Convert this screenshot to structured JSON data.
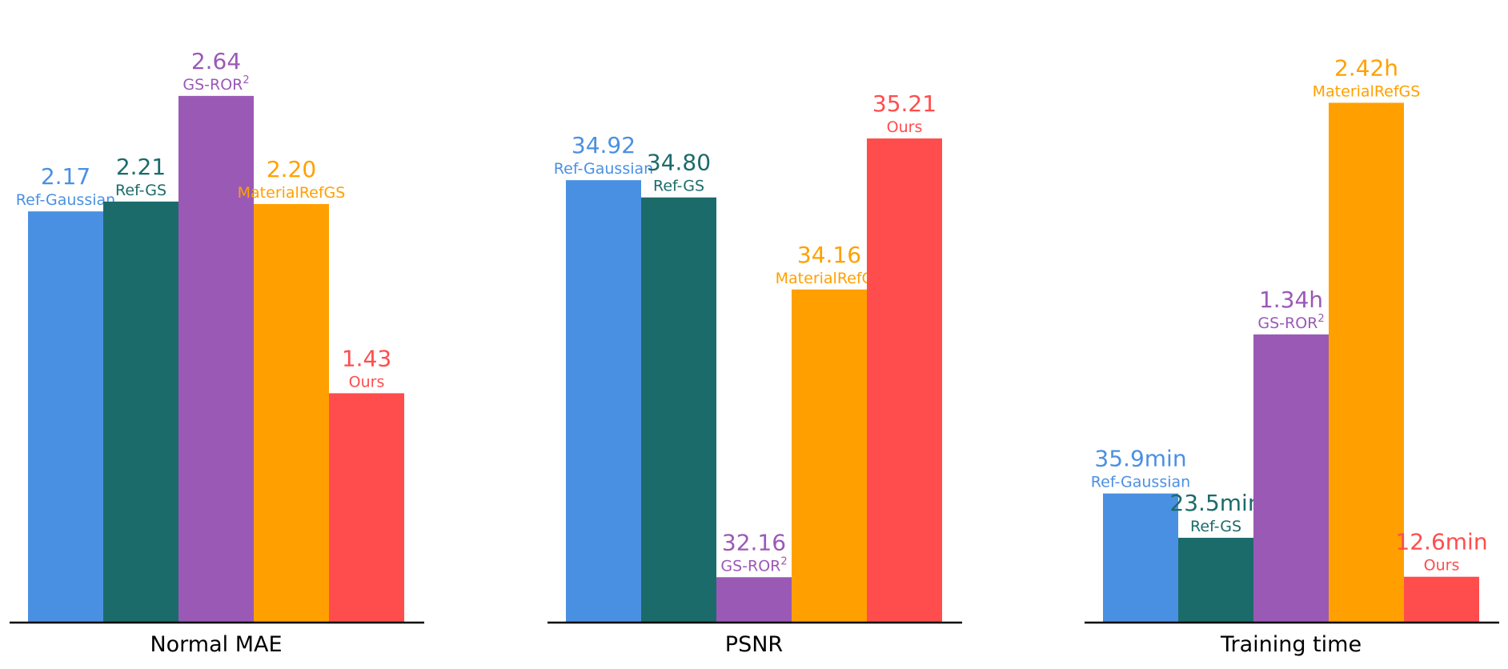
{
  "chart_data": [
    {
      "type": "bar",
      "xlabel": "Normal MAE",
      "ylim": [
        0.5,
        2.9
      ],
      "bars": [
        {
          "method": "Ref-Gaussian",
          "value": 2.17,
          "value_label": "2.17",
          "color": "#4A90E2"
        },
        {
          "method": "Ref-GS",
          "value": 2.21,
          "value_label": "2.21",
          "color": "#1C6B6B"
        },
        {
          "method": "GS-ROR",
          "superscript": "2",
          "value": 2.64,
          "value_label": "2.64",
          "color": "#9B59B6"
        },
        {
          "method": "MaterialRefGS",
          "value": 2.2,
          "value_label": "2.20",
          "color": "#FFA000"
        },
        {
          "method": "Ours",
          "value": 1.43,
          "value_label": "1.43",
          "color": "#FF4D4D"
        }
      ]
    },
    {
      "type": "bar",
      "xlabel": "PSNR",
      "ylim": [
        31.85,
        35.95
      ],
      "bars": [
        {
          "method": "Ref-Gaussian",
          "value": 34.92,
          "value_label": "34.92",
          "color": "#4A90E2"
        },
        {
          "method": "Ref-GS",
          "value": 34.8,
          "value_label": "34.80",
          "color": "#1C6B6B"
        },
        {
          "method": "GS-ROR",
          "superscript": "2",
          "value": 32.16,
          "value_label": "32.16",
          "color": "#9B59B6"
        },
        {
          "method": "MaterialRefGS",
          "value": 34.16,
          "value_label": "34.16",
          "color": "#FFA000"
        },
        {
          "method": "Ours",
          "value": 35.21,
          "value_label": "35.21",
          "color": "#FF4D4D"
        }
      ]
    },
    {
      "type": "bar",
      "xlabel": "Training time",
      "unit": "min",
      "ylim": [
        0,
        165
      ],
      "bars": [
        {
          "method": "Ref-Gaussian",
          "value": 35.9,
          "value_label": "35.9min",
          "color": "#4A90E2"
        },
        {
          "method": "Ref-GS",
          "value": 23.5,
          "value_label": "23.5min",
          "color": "#1C6B6B"
        },
        {
          "method": "GS-ROR",
          "superscript": "2",
          "value": 80.4,
          "value_label": "1.34h",
          "color": "#9B59B6"
        },
        {
          "method": "MaterialRefGS",
          "value": 145.2,
          "value_label": "2.42h",
          "color": "#FFA000"
        },
        {
          "method": "Ours",
          "value": 12.6,
          "value_label": "12.6min",
          "color": "#FF4D4D"
        }
      ]
    }
  ]
}
